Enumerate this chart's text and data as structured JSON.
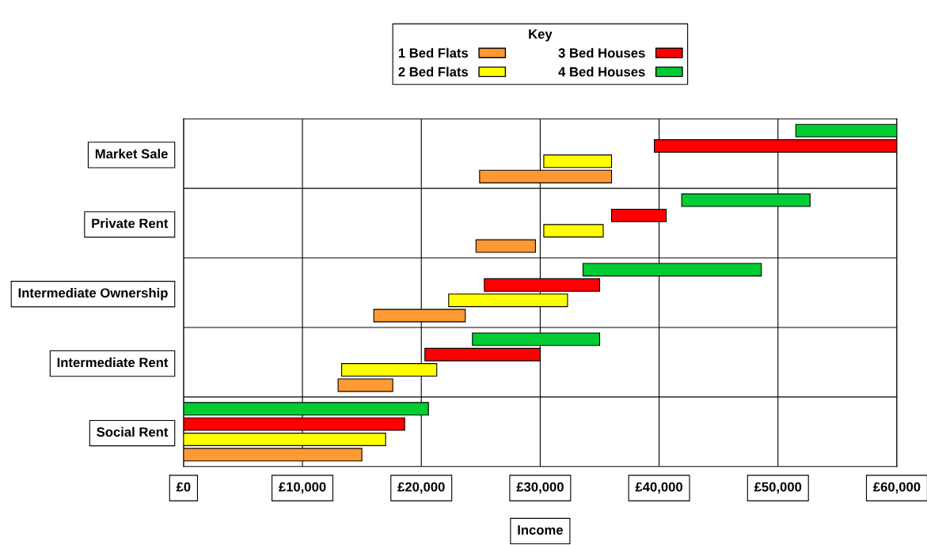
{
  "chart_data": {
    "type": "bar",
    "orientation": "horizontal",
    "xlabel": "Income",
    "legend_title": "Key",
    "legend": "top",
    "grid": true,
    "categories": [
      "Market Sale",
      "Private Rent",
      "Intermediate Ownership",
      "Intermediate Rent",
      "Social Rent"
    ],
    "series": [
      {
        "name": "1 Bed Flats",
        "color": "#ff9933",
        "base": [
          24900,
          24600,
          16000,
          13000,
          0
        ],
        "values": [
          11100,
          5000,
          7700,
          4600,
          15000
        ]
      },
      {
        "name": "2 Bed Flats",
        "color": "#ffff00",
        "base": [
          30300,
          30300,
          22300,
          13300,
          0
        ],
        "values": [
          5700,
          5000,
          10000,
          8000,
          17000
        ]
      },
      {
        "name": "3 Bed Houses",
        "color": "#ff0000",
        "base": [
          39600,
          36000,
          25300,
          20300,
          0
        ],
        "values": [
          20400,
          4600,
          9700,
          9700,
          18600
        ]
      },
      {
        "name": "4 Bed Houses",
        "color": "#00cc33",
        "base": [
          51500,
          41900,
          33600,
          24300,
          0
        ],
        "values": [
          8500,
          10800,
          15000,
          10700,
          20600
        ]
      }
    ],
    "xlim": [
      0,
      60000
    ],
    "xticks": [
      {
        "value": 0,
        "label": "£0"
      },
      {
        "value": 10000,
        "label": "£10,000"
      },
      {
        "value": 20000,
        "label": "£20,000"
      },
      {
        "value": 30000,
        "label": "£30,000"
      },
      {
        "value": 40000,
        "label": "£40,000"
      },
      {
        "value": 50000,
        "label": "£50,000"
      },
      {
        "value": 60000,
        "label": "£60,000"
      }
    ]
  }
}
